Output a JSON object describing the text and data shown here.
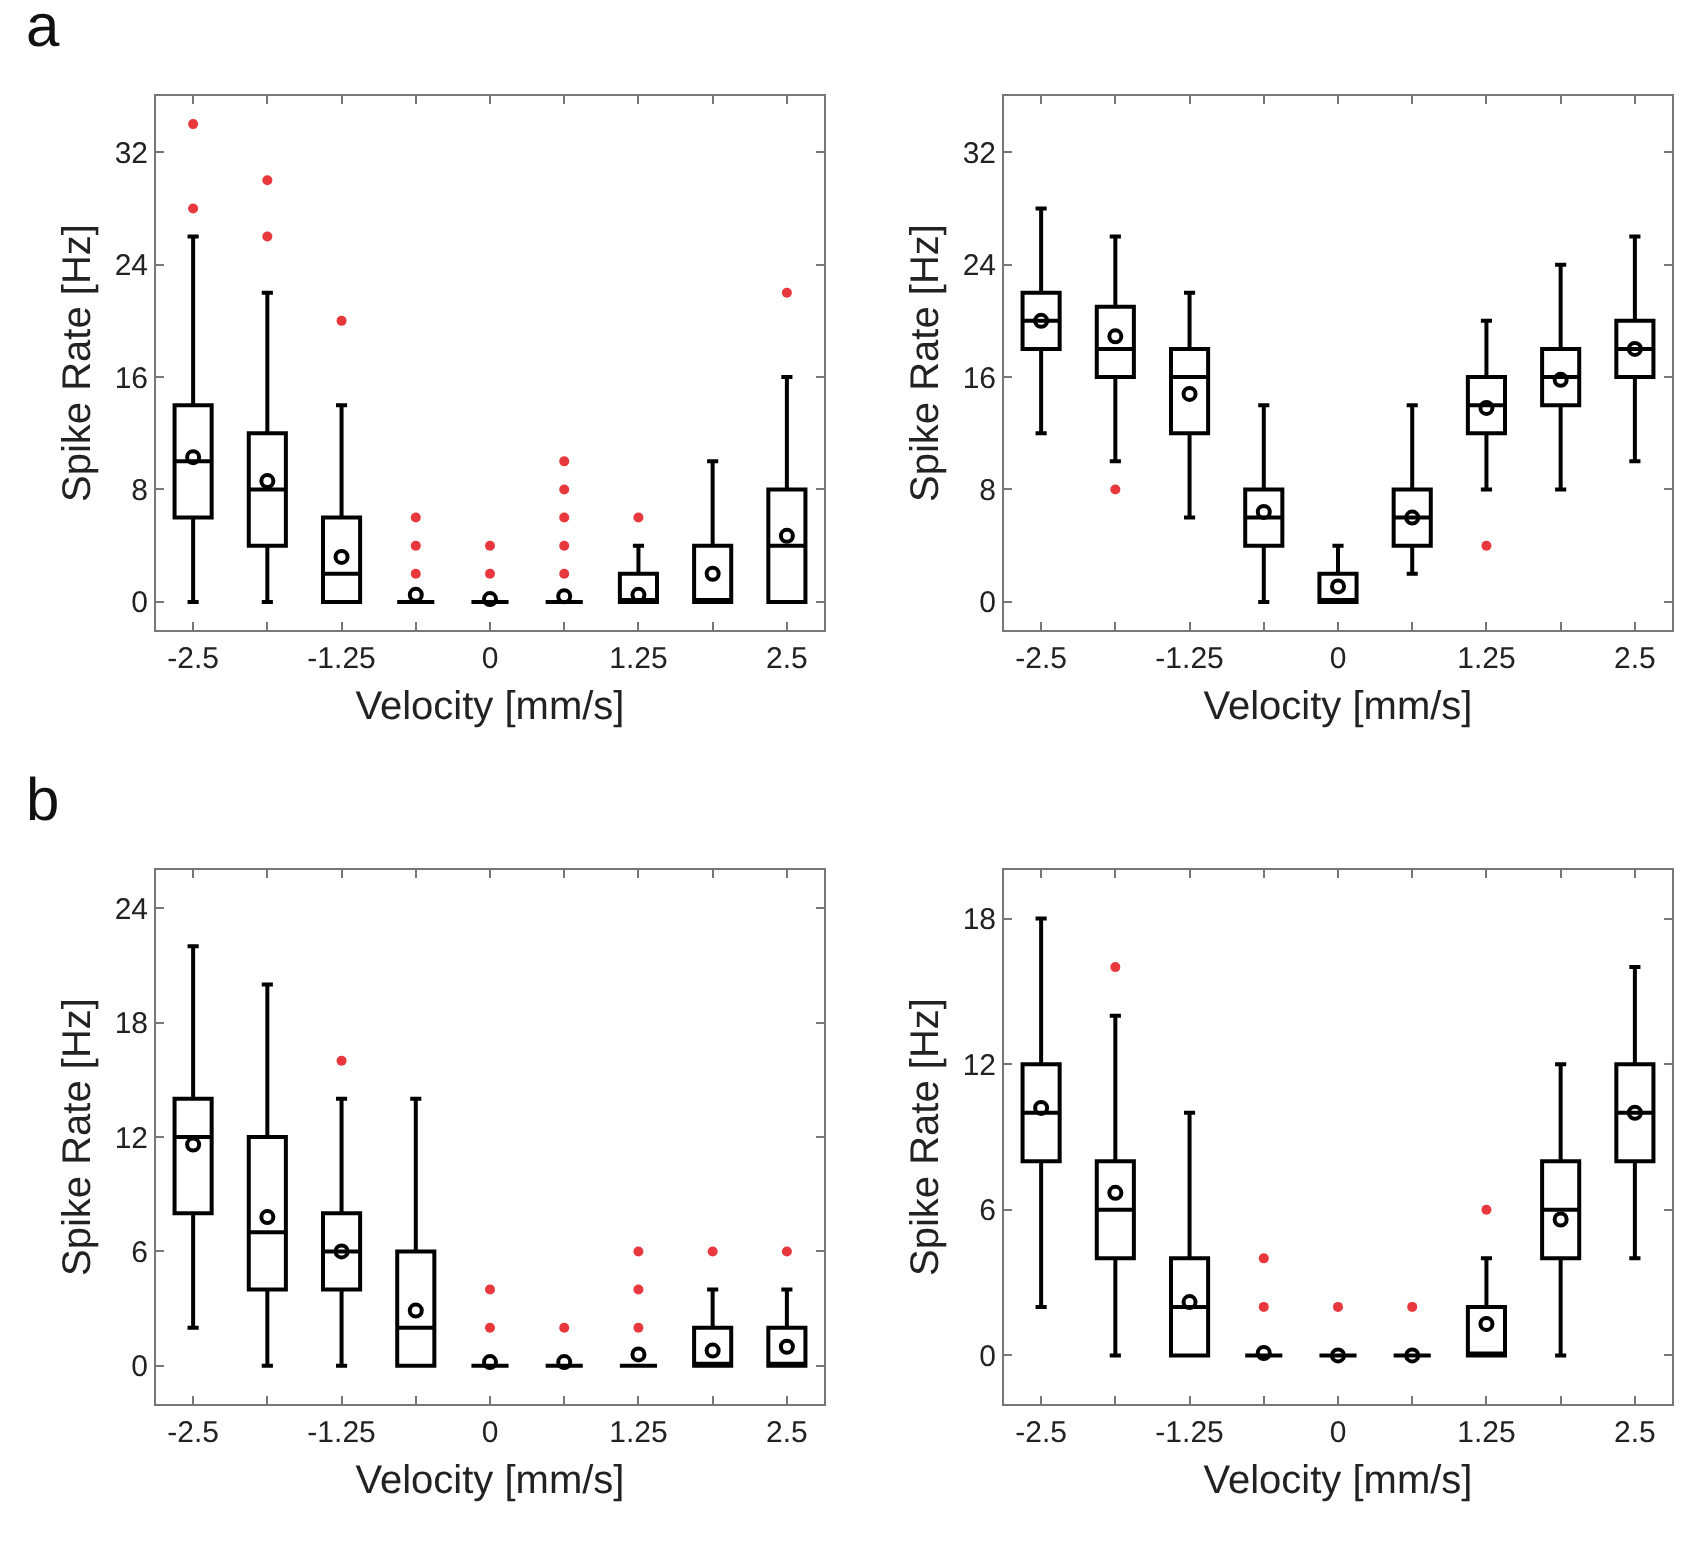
{
  "chart_data": [
    {
      "type": "box",
      "annotations": [
        "a"
      ],
      "xlabel": "Velocity [mm/s]",
      "ylabel": "Spike Rate [Hz]",
      "categories": [
        "-2.5",
        null,
        "-1.25",
        null,
        "0",
        null,
        "1.25",
        null,
        "2.5"
      ],
      "ylim": [
        -2,
        36
      ],
      "yticks": [
        0,
        8,
        16,
        24,
        32
      ],
      "grid": false,
      "color": "#000000",
      "boxes": [
        {
          "low": 0,
          "q1": 6,
          "median": 10,
          "q3": 14,
          "high": 26,
          "mean": 10.3,
          "outliers": [
            28,
            34
          ]
        },
        {
          "low": 0,
          "q1": 4,
          "median": 8,
          "q3": 12,
          "high": 22,
          "mean": 8.6,
          "outliers": [
            26,
            30
          ]
        },
        {
          "low": 0,
          "q1": 0,
          "median": 2,
          "q3": 6,
          "high": 14,
          "mean": 3.2,
          "outliers": [
            20
          ]
        },
        {
          "low": 0,
          "q1": 0,
          "median": 0,
          "q3": 0,
          "high": 0,
          "mean": 0.5,
          "outliers": [
            2,
            4,
            6
          ]
        },
        {
          "low": 0,
          "q1": 0,
          "median": 0,
          "q3": 0,
          "high": 0,
          "mean": 0.2,
          "outliers": [
            2,
            4
          ]
        },
        {
          "low": 0,
          "q1": 0,
          "median": 0,
          "q3": 0,
          "high": 0,
          "mean": 0.4,
          "outliers": [
            2,
            4,
            6,
            8,
            10
          ]
        },
        {
          "low": 0,
          "q1": 0,
          "median": 0,
          "q3": 2,
          "high": 4,
          "mean": 0.5,
          "outliers": [
            6
          ]
        },
        {
          "low": 0,
          "q1": 0,
          "median": 0,
          "q3": 4,
          "high": 10,
          "mean": 2
        },
        {
          "low": 0,
          "q1": 0,
          "median": 4,
          "q3": 8,
          "high": 16,
          "mean": 4.7,
          "outliers": [
            22
          ]
        }
      ]
    },
    {
      "type": "box",
      "xlabel": "Velocity [mm/s]",
      "ylabel": "Spike Rate [Hz]",
      "categories": [
        "-2.5",
        null,
        "-1.25",
        null,
        "0",
        null,
        "1.25",
        null,
        "2.5"
      ],
      "ylim": [
        -2,
        36
      ],
      "yticks": [
        0,
        8,
        16,
        24,
        32
      ],
      "grid": false,
      "color": "#000000",
      "boxes": [
        {
          "low": 12,
          "q1": 18,
          "median": 20,
          "q3": 22,
          "high": 28,
          "mean": 20
        },
        {
          "low": 10,
          "q1": 16,
          "median": 18,
          "q3": 21,
          "high": 26,
          "mean": 18.9,
          "outliers": [
            8
          ]
        },
        {
          "low": 6,
          "q1": 12,
          "median": 16,
          "q3": 18,
          "high": 22,
          "mean": 14.8
        },
        {
          "low": 0,
          "q1": 4,
          "median": 6,
          "q3": 8,
          "high": 14,
          "mean": 6.4
        },
        {
          "low": 0,
          "q1": 0,
          "median": 0,
          "q3": 2,
          "high": 4,
          "mean": 1.1
        },
        {
          "low": 2,
          "q1": 4,
          "median": 6,
          "q3": 8,
          "high": 14,
          "mean": 6
        },
        {
          "low": 8,
          "q1": 12,
          "median": 14,
          "q3": 16,
          "high": 20,
          "mean": 13.8,
          "outliers": [
            4
          ]
        },
        {
          "low": 8,
          "q1": 14,
          "median": 16,
          "q3": 18,
          "high": 24,
          "mean": 15.8
        },
        {
          "low": 10,
          "q1": 16,
          "median": 18,
          "q3": 20,
          "high": 26,
          "mean": 18
        }
      ]
    },
    {
      "type": "box",
      "annotations": [
        "b"
      ],
      "xlabel": "Velocity [mm/s]",
      "ylabel": "Spike Rate [Hz]",
      "categories": [
        "-2.5",
        null,
        "-1.25",
        null,
        "0",
        null,
        "1.25",
        null,
        "2.5"
      ],
      "ylim": [
        -2,
        26
      ],
      "yticks": [
        0,
        6,
        12,
        18,
        24
      ],
      "grid": false,
      "color": "#000000",
      "boxes": [
        {
          "low": 2,
          "q1": 8,
          "median": 12,
          "q3": 14,
          "high": 22,
          "mean": 11.6
        },
        {
          "low": 0,
          "q1": 4,
          "median": 7,
          "q3": 12,
          "high": 20,
          "mean": 7.8
        },
        {
          "low": 0,
          "q1": 4,
          "median": 6,
          "q3": 8,
          "high": 14,
          "mean": 6,
          "outliers": [
            16
          ]
        },
        {
          "low": 0,
          "q1": 0,
          "median": 2,
          "q3": 6,
          "high": 14,
          "mean": 2.9
        },
        {
          "low": 0,
          "q1": 0,
          "median": 0,
          "q3": 0,
          "high": 0,
          "mean": 0.2,
          "outliers": [
            2,
            4
          ]
        },
        {
          "low": 0,
          "q1": 0,
          "median": 0,
          "q3": 0,
          "high": 0,
          "mean": 0.2,
          "outliers": [
            2
          ]
        },
        {
          "low": 0,
          "q1": 0,
          "median": 0,
          "q3": 0,
          "high": 0,
          "mean": 0.6,
          "outliers": [
            2,
            4,
            6
          ]
        },
        {
          "low": 0,
          "q1": 0,
          "median": 0,
          "q3": 2,
          "high": 4,
          "mean": 0.8,
          "outliers": [
            6
          ]
        },
        {
          "low": 0,
          "q1": 0,
          "median": 0,
          "q3": 2,
          "high": 4,
          "mean": 1,
          "outliers": [
            6
          ]
        }
      ]
    },
    {
      "type": "box",
      "xlabel": "Velocity [mm/s]",
      "ylabel": "Spike Rate [Hz]",
      "categories": [
        "-2.5",
        null,
        "-1.25",
        null,
        "0",
        null,
        "1.25",
        null,
        "2.5"
      ],
      "ylim": [
        -2,
        20
      ],
      "yticks": [
        0,
        6,
        12,
        18
      ],
      "grid": false,
      "color": "#000000",
      "boxes": [
        {
          "low": 2,
          "q1": 8,
          "median": 10,
          "q3": 12,
          "high": 18,
          "mean": 10.2
        },
        {
          "low": 0,
          "q1": 4,
          "median": 6,
          "q3": 8,
          "high": 14,
          "mean": 6.7,
          "outliers": [
            16
          ]
        },
        {
          "low": 0,
          "q1": 0,
          "median": 2,
          "q3": 4,
          "high": 10,
          "mean": 2.2
        },
        {
          "low": 0,
          "q1": 0,
          "median": 0,
          "q3": 0,
          "high": 0,
          "mean": 0.1,
          "outliers": [
            2,
            4
          ]
        },
        {
          "low": 0,
          "q1": 0,
          "median": 0,
          "q3": 0,
          "high": 0,
          "mean": 0,
          "outliers": [
            2
          ]
        },
        {
          "low": 0,
          "q1": 0,
          "median": 0,
          "q3": 0,
          "high": 0,
          "mean": 0,
          "outliers": [
            2
          ]
        },
        {
          "low": 0,
          "q1": 0,
          "median": 0,
          "q3": 2,
          "high": 4,
          "mean": 1.3,
          "outliers": [
            6
          ]
        },
        {
          "low": 0,
          "q1": 4,
          "median": 6,
          "q3": 8,
          "high": 12,
          "mean": 5.6
        },
        {
          "low": 4,
          "q1": 8,
          "median": 10,
          "q3": 12,
          "high": 16,
          "mean": 10
        }
      ]
    }
  ]
}
